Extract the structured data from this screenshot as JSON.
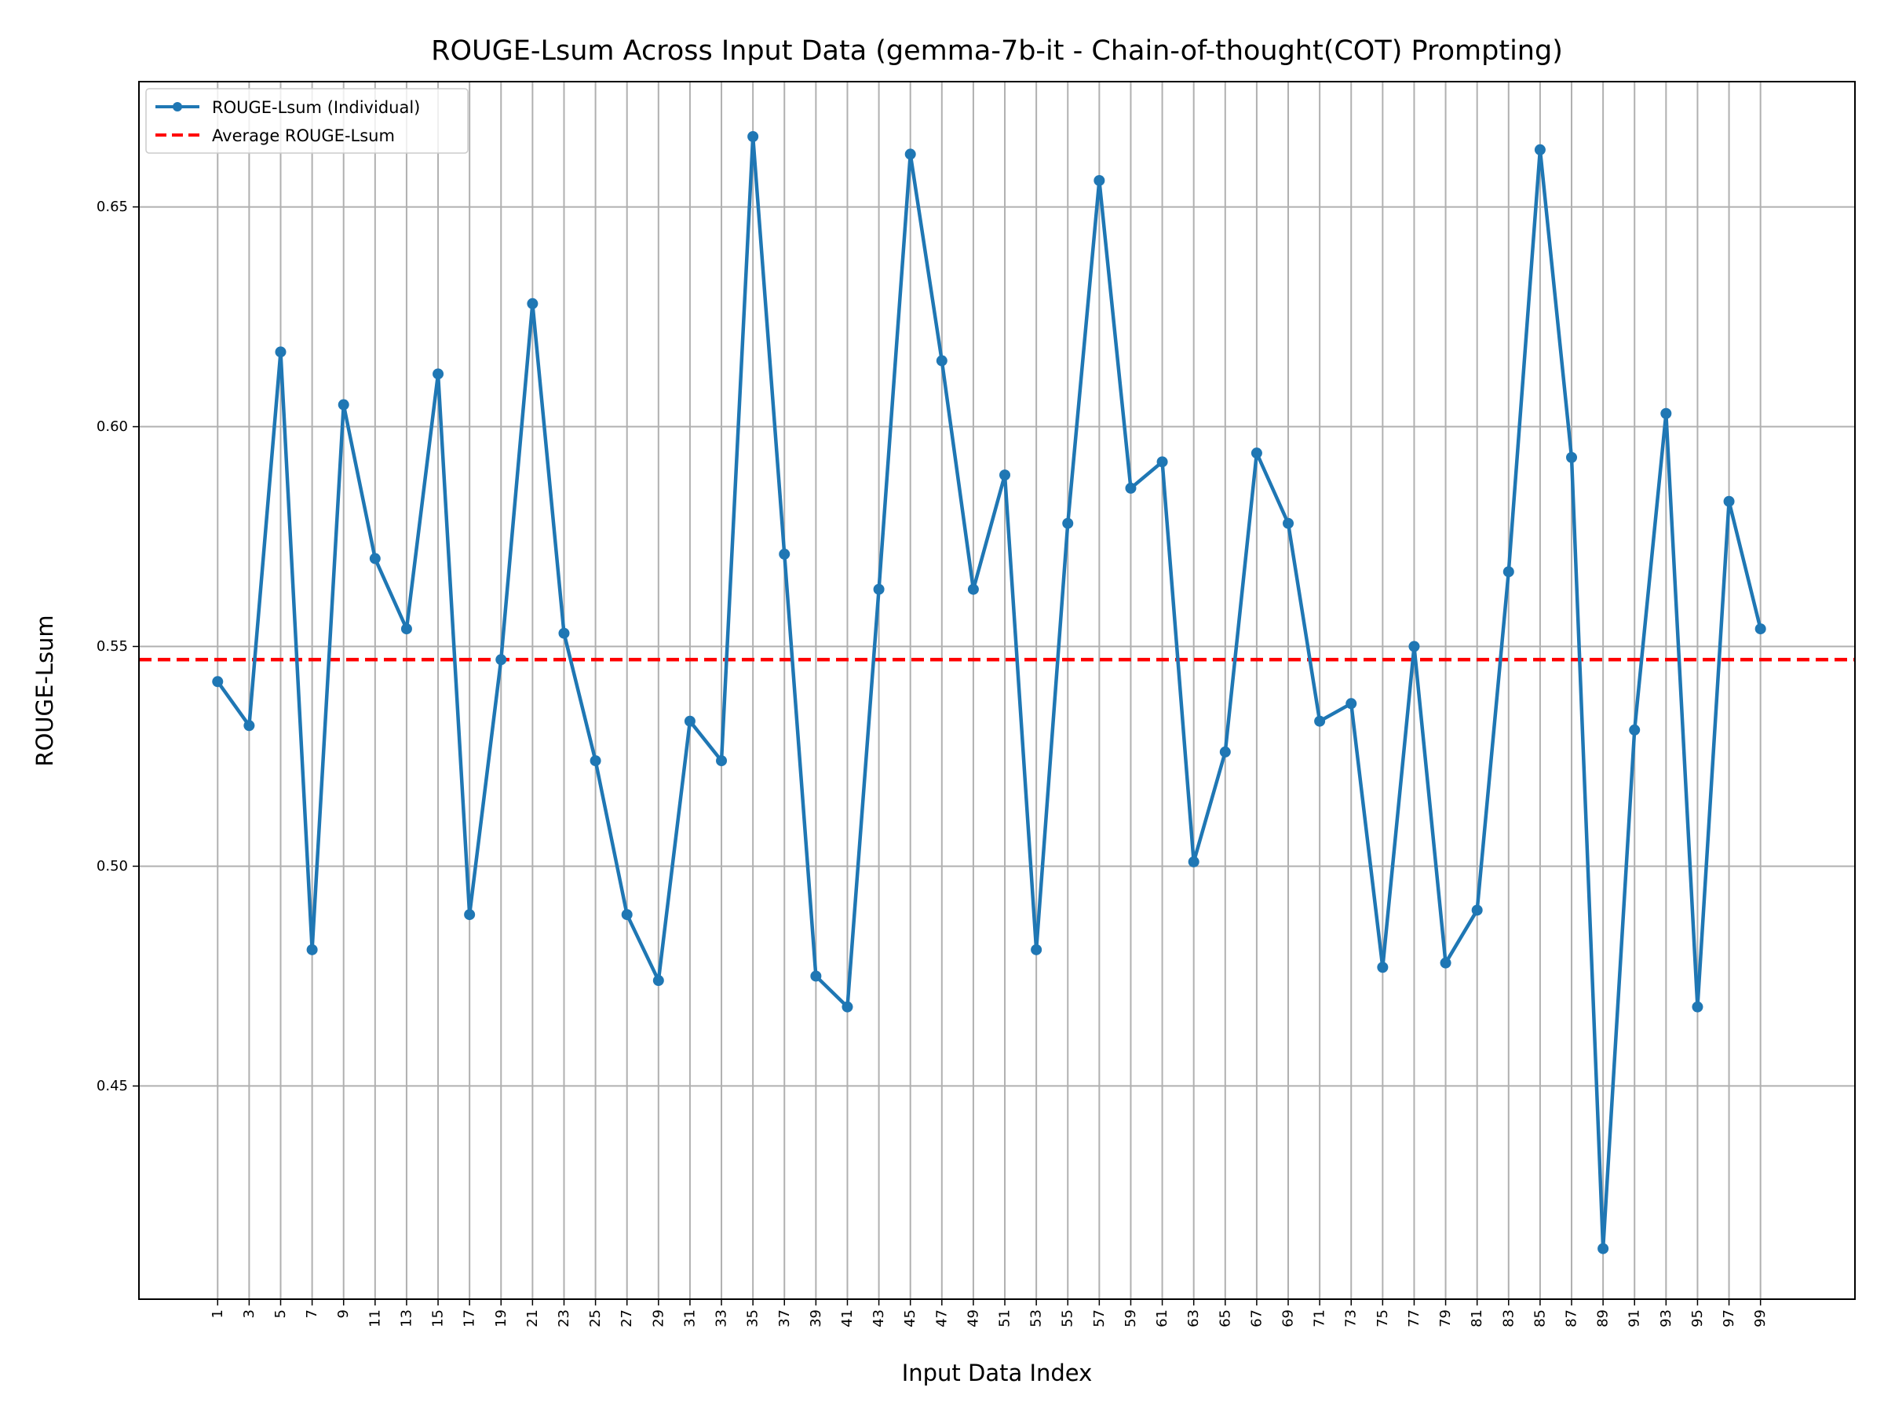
{
  "chart_data": {
    "type": "line",
    "title": "ROUGE-Lsum Across Input Data (gemma-7b-it - Chain-of-thought(COT) Prompting)",
    "xlabel": "Input Data Index",
    "ylabel": "ROUGE-Lsum",
    "x": [
      1,
      3,
      5,
      7,
      9,
      11,
      13,
      15,
      17,
      19,
      21,
      23,
      25,
      27,
      29,
      31,
      33,
      35,
      37,
      39,
      41,
      43,
      45,
      47,
      49,
      51,
      53,
      55,
      57,
      59,
      61,
      63,
      65,
      67,
      69,
      71,
      73,
      75,
      77,
      79,
      81,
      83,
      85,
      87,
      89,
      91,
      93,
      95,
      97,
      99
    ],
    "xticks": [
      "1",
      "3",
      "5",
      "7",
      "9",
      "11",
      "13",
      "15",
      "17",
      "19",
      "21",
      "23",
      "25",
      "27",
      "29",
      "31",
      "33",
      "35",
      "37",
      "39",
      "41",
      "43",
      "45",
      "47",
      "49",
      "51",
      "53",
      "55",
      "57",
      "59",
      "61",
      "63",
      "65",
      "67",
      "69",
      "71",
      "73",
      "75",
      "77",
      "79",
      "81",
      "83",
      "85",
      "87",
      "89",
      "91",
      "93",
      "95",
      "97",
      "99"
    ],
    "yticks": [
      "0.45",
      "0.50",
      "0.55",
      "0.60",
      "0.65"
    ],
    "ytick_values": [
      0.45,
      0.5,
      0.55,
      0.6,
      0.65
    ],
    "xlim": [
      -4,
      105
    ],
    "ylim": [
      0.4015,
      0.6785
    ],
    "grid": true,
    "legend_position": "top-left",
    "series": [
      {
        "name": "ROUGE-Lsum (Individual)",
        "color": "#1f77b4",
        "style": "solid-with-markers",
        "values": [
          0.542,
          0.532,
          0.617,
          0.481,
          0.605,
          0.57,
          0.554,
          0.612,
          0.489,
          0.547,
          0.628,
          0.553,
          0.524,
          0.489,
          0.474,
          0.533,
          0.524,
          0.666,
          0.571,
          0.475,
          0.468,
          0.563,
          0.662,
          0.615,
          0.563,
          0.589,
          0.481,
          0.578,
          0.656,
          0.586,
          0.592,
          0.501,
          0.526,
          0.594,
          0.578,
          0.533,
          0.537,
          0.477,
          0.55,
          0.478,
          0.49,
          0.567,
          0.663,
          0.593,
          0.413,
          0.531,
          0.603,
          0.468,
          0.583,
          0.554
        ]
      },
      {
        "name": "Average ROUGE-Lsum",
        "color": "#ff0000",
        "style": "dashed",
        "value": 0.547
      }
    ]
  }
}
